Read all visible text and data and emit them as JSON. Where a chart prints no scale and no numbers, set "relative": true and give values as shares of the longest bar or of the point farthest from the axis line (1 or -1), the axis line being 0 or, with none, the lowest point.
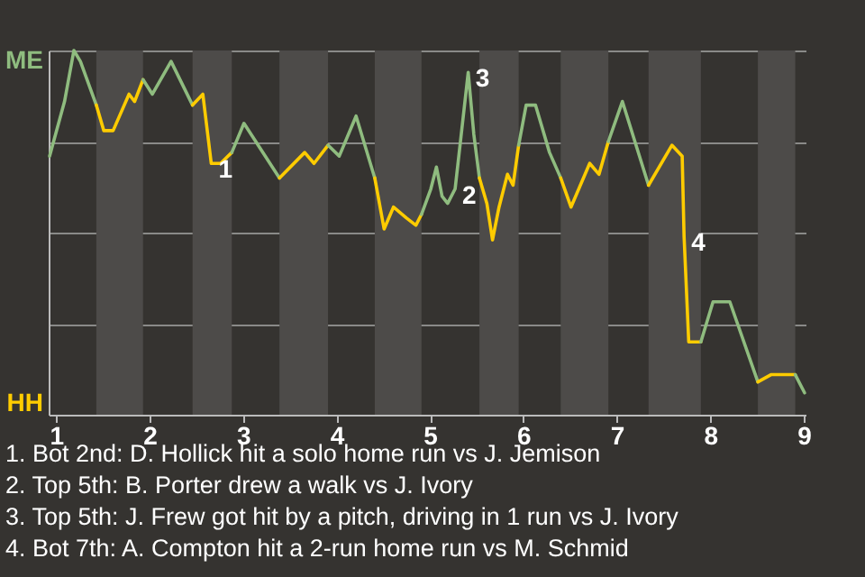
{
  "chart_data": {
    "type": "line",
    "relative": true,
    "series": [
      {
        "color": "#8fbc7f",
        "x": [
          0.93,
          1.09,
          1.19,
          1.26,
          1.43
        ],
        "values": [
          0.71,
          0.86,
          1,
          0.97,
          0.85
        ]
      },
      {
        "color": "#ffcc00",
        "x": [
          1.43,
          1.51,
          1.61,
          1.78,
          1.84,
          1.93
        ],
        "values": [
          0.85,
          0.78,
          0.78,
          0.88,
          0.86,
          0.92
        ]
      },
      {
        "color": "#8fbc7f",
        "x": [
          1.93,
          2.03,
          2.23,
          2.46
        ],
        "values": [
          0.92,
          0.88,
          0.97,
          0.85
        ]
      },
      {
        "color": "#ffcc00",
        "x": [
          2.46,
          2.57,
          2.66,
          2.76,
          2.88
        ],
        "values": [
          0.85,
          0.88,
          0.69,
          0.69,
          0.72
        ]
      },
      {
        "color": "#8fbc7f",
        "x": [
          2.88,
          3.01,
          3.39
        ],
        "values": [
          0.72,
          0.8,
          0.65
        ]
      },
      {
        "color": "#ffcc00",
        "x": [
          3.39,
          3.66,
          3.76,
          3.91
        ],
        "values": [
          0.65,
          0.72,
          0.69,
          0.74
        ]
      },
      {
        "color": "#8fbc7f",
        "x": [
          3.91,
          4.03,
          4.21,
          4.41
        ],
        "values": [
          0.74,
          0.71,
          0.82,
          0.65
        ]
      },
      {
        "color": "#ffcc00",
        "x": [
          4.41,
          4.51,
          4.61,
          4.75,
          4.85,
          4.91
        ],
        "values": [
          0.65,
          0.51,
          0.57,
          0.54,
          0.52,
          0.55
        ]
      },
      {
        "color": "#8fbc7f",
        "x": [
          4.91,
          5.01,
          5.07,
          5.13,
          5.19,
          5.27,
          5.41,
          5.47,
          5.53
        ],
        "values": [
          0.55,
          0.62,
          0.68,
          0.6,
          0.58,
          0.62,
          0.94,
          0.77,
          0.65
        ]
      },
      {
        "color": "#ffcc00",
        "x": [
          5.53,
          5.61,
          5.67,
          5.74,
          5.83,
          5.89,
          5.95
        ],
        "values": [
          0.65,
          0.58,
          0.48,
          0.57,
          0.66,
          0.63,
          0.74
        ]
      },
      {
        "color": "#8fbc7f",
        "x": [
          5.95,
          6.03,
          6.13,
          6.28,
          6.4
        ],
        "values": [
          0.74,
          0.85,
          0.85,
          0.72,
          0.65
        ]
      },
      {
        "color": "#ffcc00",
        "x": [
          6.4,
          6.51,
          6.71,
          6.81,
          6.91
        ],
        "values": [
          0.65,
          0.57,
          0.69,
          0.66,
          0.75
        ]
      },
      {
        "color": "#8fbc7f",
        "x": [
          6.91,
          7.06,
          7.34
        ],
        "values": [
          0.75,
          0.86,
          0.63
        ]
      },
      {
        "color": "#ffcc00",
        "x": [
          7.34,
          7.59,
          7.7,
          7.72,
          7.77,
          7.9
        ],
        "values": [
          0.63,
          0.74,
          0.71,
          0.49,
          0.2,
          0.2
        ]
      },
      {
        "color": "#8fbc7f",
        "x": [
          7.9,
          8.03,
          8.21,
          8.51
        ],
        "values": [
          0.2,
          0.31,
          0.31,
          0.09
        ]
      },
      {
        "color": "#ffcc00",
        "x": [
          8.51,
          8.65,
          8.91
        ],
        "values": [
          0.09,
          0.11,
          0.11
        ]
      },
      {
        "color": "#8fbc7f",
        "x": [
          8.91,
          9.01
        ],
        "values": [
          0.11,
          0.06
        ]
      }
    ],
    "xlim": [
      0.92,
      9.02
    ],
    "xticks": [
      1,
      2,
      3,
      4,
      5,
      6,
      7,
      8,
      9
    ],
    "grid": "y",
    "bands": [
      {
        "axis": "x",
        "from": 1.43,
        "to": 1.93,
        "color": "#4d4b49"
      },
      {
        "axis": "x",
        "from": 2.46,
        "to": 2.88,
        "color": "#4d4b49"
      },
      {
        "axis": "x",
        "from": 3.39,
        "to": 3.91,
        "color": "#4d4b49"
      },
      {
        "axis": "x",
        "from": 4.41,
        "to": 4.91,
        "color": "#4d4b49"
      },
      {
        "axis": "x",
        "from": 5.53,
        "to": 5.95,
        "color": "#4d4b49"
      },
      {
        "axis": "x",
        "from": 6.4,
        "to": 6.91,
        "color": "#4d4b49"
      },
      {
        "axis": "x",
        "from": 7.34,
        "to": 7.9,
        "color": "#4d4b49"
      },
      {
        "axis": "x",
        "from": 8.51,
        "to": 8.91,
        "color": "#4d4b49"
      }
    ],
    "annotations": [
      "ME",
      "HH",
      {
        "text": "1",
        "x": 2.66,
        "y": 0.69
      },
      {
        "text": "2",
        "x": 5.27,
        "y": 0.62
      },
      {
        "text": "3",
        "x": 5.41,
        "y": 0.94
      },
      {
        "text": "4",
        "x": 7.72,
        "y": 0.49
      },
      "1. Bot 2nd: D. Hollick hit a solo home run vs J. Jemison",
      "2. Top 5th: B. Porter drew a walk vs J. Ivory",
      "3. Top 5th: J. Frew got hit by a pitch, driving in 1 run vs J. Ivory",
      "4. Bot 7th: A. Compton hit a 2-run home run vs M. Schmid"
    ]
  }
}
